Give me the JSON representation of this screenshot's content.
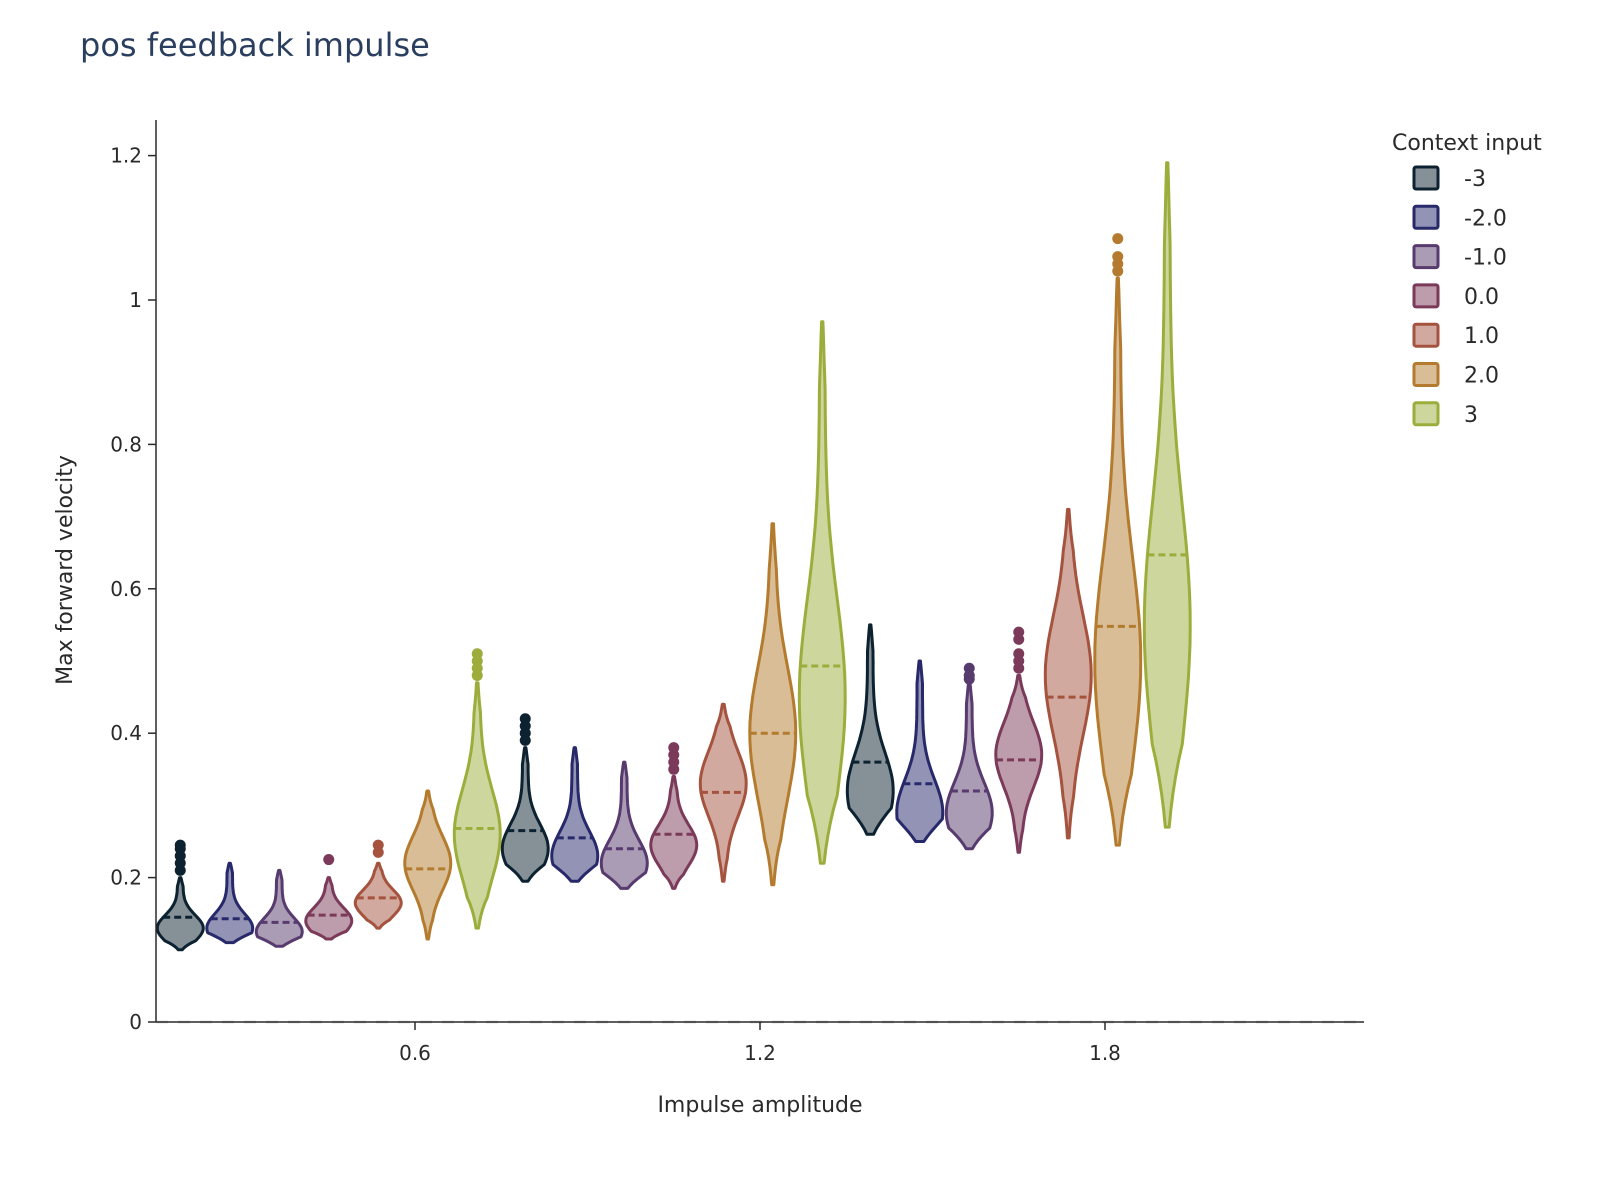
{
  "title": "pos feedback impulse",
  "chart_data": {
    "type": "violin",
    "title": "pos feedback impulse",
    "xlabel": "Impulse amplitude",
    "ylabel": "Max forward velocity",
    "xticks": [
      "0.6",
      "1.2",
      "1.8"
    ],
    "yticks": [
      "0",
      "0.2",
      "0.4",
      "0.6",
      "0.8",
      "1",
      "1.2"
    ],
    "ylim": [
      0,
      1.25
    ],
    "reference_line_y": 0,
    "legend": {
      "title": "Context input",
      "placement": "right-top",
      "entries": [
        "-3",
        "-2.0",
        "-1.0",
        "0.0",
        "1.0",
        "2.0",
        "3"
      ]
    },
    "colors": {
      "-3": "#0d2230",
      "-2.0": "#27296b",
      "-1.0": "#573a6e",
      "0.0": "#7b3a5a",
      "1.0": "#a5533e",
      "2.0": "#b47b2e",
      "3": "#9cad3c"
    },
    "groups": [
      {
        "impulse": "0.45",
        "series": [
          {
            "context": "-3",
            "min": 0.1,
            "max": 0.2,
            "median": 0.145,
            "peak": 0.13,
            "outliers": [
              0.21,
              0.22,
              0.23,
              0.24,
              0.245
            ]
          },
          {
            "context": "-2.0",
            "min": 0.11,
            "max": 0.22,
            "median": 0.143,
            "peak": 0.13,
            "outliers": []
          },
          {
            "context": "-1.0",
            "min": 0.105,
            "max": 0.21,
            "median": 0.138,
            "peak": 0.125,
            "outliers": []
          },
          {
            "context": "0.0",
            "min": 0.115,
            "max": 0.2,
            "median": 0.148,
            "peak": 0.14,
            "outliers": [
              0.225
            ]
          },
          {
            "context": "1.0",
            "min": 0.13,
            "max": 0.22,
            "median": 0.172,
            "peak": 0.165,
            "outliers": [
              0.235,
              0.245
            ]
          },
          {
            "context": "2.0",
            "min": 0.115,
            "max": 0.32,
            "median": 0.212,
            "peak": 0.22,
            "outliers": []
          },
          {
            "context": "3",
            "min": 0.13,
            "max": 0.47,
            "median": 0.268,
            "peak": 0.26,
            "outliers": [
              0.48,
              0.49,
              0.5,
              0.51
            ]
          }
        ]
      },
      {
        "impulse": "1.05",
        "series": [
          {
            "context": "-3",
            "min": 0.195,
            "max": 0.38,
            "median": 0.265,
            "peak": 0.24,
            "outliers": [
              0.39,
              0.4,
              0.41,
              0.42
            ]
          },
          {
            "context": "-2.0",
            "min": 0.195,
            "max": 0.38,
            "median": 0.255,
            "peak": 0.23,
            "outliers": []
          },
          {
            "context": "-1.0",
            "min": 0.185,
            "max": 0.36,
            "median": 0.24,
            "peak": 0.22,
            "outliers": []
          },
          {
            "context": "0.0",
            "min": 0.185,
            "max": 0.34,
            "median": 0.26,
            "peak": 0.245,
            "outliers": [
              0.35,
              0.36,
              0.37,
              0.38
            ]
          },
          {
            "context": "1.0",
            "min": 0.195,
            "max": 0.44,
            "median": 0.318,
            "peak": 0.33,
            "outliers": []
          },
          {
            "context": "2.0",
            "min": 0.19,
            "max": 0.69,
            "median": 0.4,
            "peak": 0.4,
            "outliers": []
          },
          {
            "context": "3",
            "min": 0.22,
            "max": 0.97,
            "median": 0.493,
            "peak": 0.45,
            "outliers": []
          }
        ]
      },
      {
        "impulse": "1.65",
        "series": [
          {
            "context": "-3",
            "min": 0.26,
            "max": 0.55,
            "median": 0.36,
            "peak": 0.32,
            "outliers": []
          },
          {
            "context": "-2.0",
            "min": 0.25,
            "max": 0.5,
            "median": 0.33,
            "peak": 0.29,
            "outliers": []
          },
          {
            "context": "-1.0",
            "min": 0.24,
            "max": 0.47,
            "median": 0.32,
            "peak": 0.29,
            "outliers": [
              0.475,
              0.48,
              0.49
            ]
          },
          {
            "context": "0.0",
            "min": 0.235,
            "max": 0.48,
            "median": 0.363,
            "peak": 0.37,
            "outliers": [
              0.49,
              0.5,
              0.51,
              0.53,
              0.54
            ]
          },
          {
            "context": "1.0",
            "min": 0.255,
            "max": 0.71,
            "median": 0.45,
            "peak": 0.48,
            "outliers": []
          },
          {
            "context": "2.0",
            "min": 0.245,
            "max": 1.03,
            "median": 0.548,
            "peak": 0.5,
            "outliers": [
              1.04,
              1.05,
              1.06,
              1.085
            ]
          },
          {
            "context": "3",
            "min": 0.27,
            "max": 1.19,
            "median": 0.647,
            "peak": 0.55,
            "outliers": []
          }
        ]
      }
    ]
  }
}
